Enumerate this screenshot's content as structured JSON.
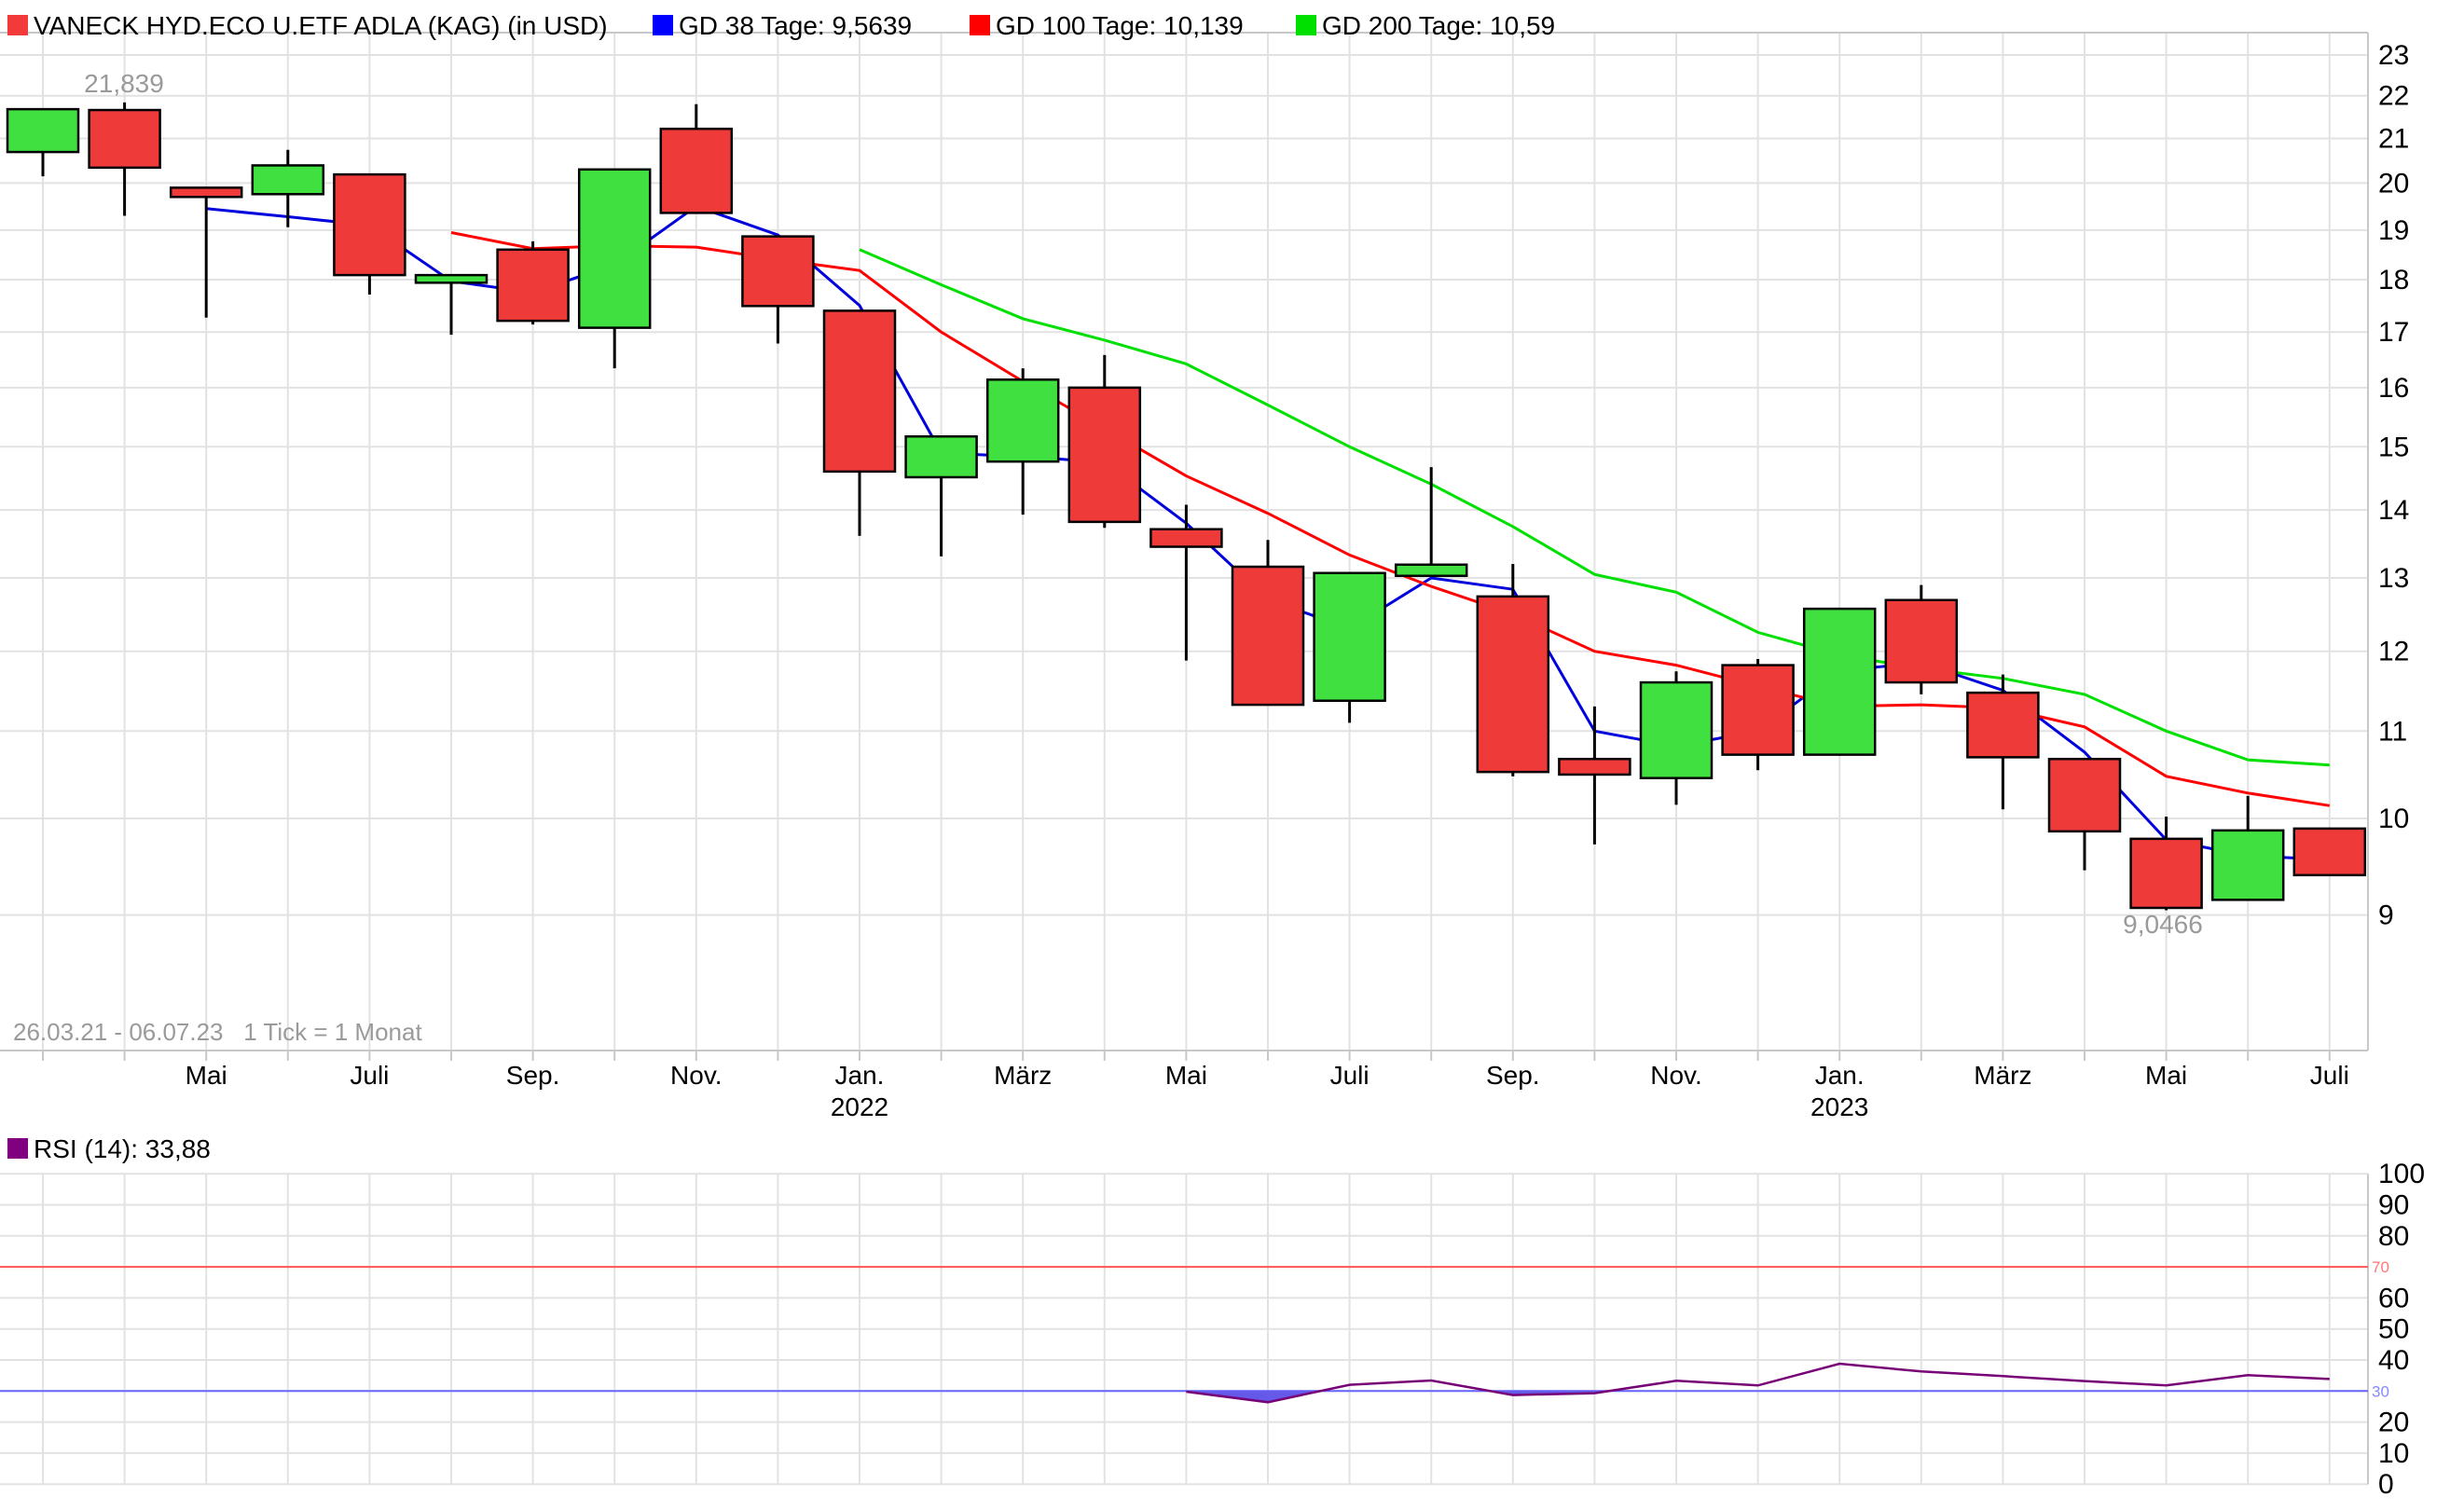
{
  "legend": {
    "items": [
      {
        "name": "instrument",
        "label": "VANECK HYD.ECO U.ETF ADLA (KAG) (in USD)",
        "marker_color": "#f23a3a"
      },
      {
        "name": "gd38",
        "label": "GD 38 Tage: 9,5639",
        "marker_color": "#0000ff"
      },
      {
        "name": "gd100",
        "label": "GD 100 Tage: 10,139",
        "marker_color": "#ff0000"
      },
      {
        "name": "gd200",
        "label": "GD 200 Tage: 10,59",
        "marker_color": "#00e000"
      }
    ]
  },
  "rsi_legend": {
    "label": "RSI (14): 33,88",
    "marker_color": "#800080"
  },
  "range_info": "26.03.21 - 06.07.23   1 Tick = 1 Monat",
  "annotations": {
    "high_label": "21,839",
    "low_label": "9,0466"
  },
  "colors": {
    "candle_up": "#3fe03f",
    "candle_down": "#ef3a3a",
    "candle_border": "#000000",
    "gd38": "#0000dd",
    "gd100": "#ff0000",
    "gd200": "#00e000",
    "rsi_line": "#770077",
    "rsi_fill": "#6459e8",
    "threshold_high": "#ff5555",
    "threshold_low": "#6666ff",
    "threshold_high_label": "#ff7777",
    "threshold_low_label": "#8888ff",
    "grid": "#e2e2e2",
    "border": "#c8c8c8",
    "axis_text": "#000000",
    "muted_text": "#9a9a9a"
  },
  "chart_data": [
    {
      "type": "candlestick",
      "title": "VANECK HYD.ECO U.ETF ADLA (KAG) (in USD)",
      "y_axis": {
        "scale": "log",
        "side": "right",
        "ticks": [
          23,
          22,
          21,
          20,
          19,
          18,
          17,
          16,
          15,
          14,
          13,
          12,
          11,
          10,
          9
        ],
        "range_top": 23.6,
        "range_bottom": 7.8
      },
      "x_axis_labels": [
        {
          "i": 2,
          "label": "Mai"
        },
        {
          "i": 4,
          "label": "Juli"
        },
        {
          "i": 6,
          "label": "Sep."
        },
        {
          "i": 8,
          "label": "Nov."
        },
        {
          "i": 10,
          "label": "Jan.",
          "year": "2022"
        },
        {
          "i": 12,
          "label": "März"
        },
        {
          "i": 14,
          "label": "Mai"
        },
        {
          "i": 16,
          "label": "Juli"
        },
        {
          "i": 18,
          "label": "Sep."
        },
        {
          "i": 20,
          "label": "Nov."
        },
        {
          "i": 22,
          "label": "Jan.",
          "year": "2023"
        },
        {
          "i": 24,
          "label": "März"
        },
        {
          "i": 26,
          "label": "Mai"
        },
        {
          "i": 28,
          "label": "Juli"
        }
      ],
      "candles": [
        {
          "m": "Mär. 2021",
          "o": 20.69,
          "h": 21.68,
          "l": 20.15,
          "c": 21.68
        },
        {
          "m": "Apr. 2021",
          "o": 21.66,
          "h": 21.839,
          "l": 19.3,
          "c": 20.34
        },
        {
          "m": "Mai 2021",
          "o": 19.9,
          "h": 19.9,
          "l": 17.27,
          "c": 19.7
        },
        {
          "m": "Jun. 2021",
          "o": 19.76,
          "h": 20.74,
          "l": 19.06,
          "c": 20.39
        },
        {
          "m": "Jul. 2021",
          "o": 20.19,
          "h": 20.19,
          "l": 17.71,
          "c": 18.09
        },
        {
          "m": "Aug. 2021",
          "o": 17.94,
          "h": 18.09,
          "l": 16.95,
          "c": 18.09
        },
        {
          "m": "Sep. 2021",
          "o": 18.6,
          "h": 18.77,
          "l": 17.14,
          "c": 17.21
        },
        {
          "m": "Okt. 2021",
          "o": 17.08,
          "h": 20.3,
          "l": 16.34,
          "c": 20.3
        },
        {
          "m": "Nov. 2021",
          "o": 21.22,
          "h": 21.8,
          "l": 19.36,
          "c": 19.36
        },
        {
          "m": "Dez. 2021",
          "o": 18.87,
          "h": 18.87,
          "l": 16.79,
          "c": 17.49
        },
        {
          "m": "Jan. 2022",
          "o": 17.4,
          "h": 17.4,
          "l": 13.61,
          "c": 14.6
        },
        {
          "m": "Feb. 2022",
          "o": 14.51,
          "h": 15.17,
          "l": 13.31,
          "c": 15.17
        },
        {
          "m": "Mär. 2022",
          "o": 14.76,
          "h": 16.34,
          "l": 13.93,
          "c": 16.14
        },
        {
          "m": "Apr. 2022",
          "o": 16.0,
          "h": 16.58,
          "l": 13.73,
          "c": 13.82
        },
        {
          "m": "Mai 2022",
          "o": 13.71,
          "h": 14.08,
          "l": 11.88,
          "c": 13.45
        },
        {
          "m": "Jun. 2022",
          "o": 13.16,
          "h": 13.55,
          "l": 11.32,
          "c": 11.32
        },
        {
          "m": "Jul. 2022",
          "o": 11.37,
          "h": 13.07,
          "l": 11.1,
          "c": 13.07
        },
        {
          "m": "Aug. 2022",
          "o": 13.03,
          "h": 14.67,
          "l": 13.03,
          "c": 13.19
        },
        {
          "m": "Sep. 2022",
          "o": 12.74,
          "h": 13.2,
          "l": 10.47,
          "c": 10.52
        },
        {
          "m": "Okt. 2022",
          "o": 10.67,
          "h": 11.3,
          "l": 9.72,
          "c": 10.49
        },
        {
          "m": "Nov. 2022",
          "o": 10.45,
          "h": 11.74,
          "l": 10.15,
          "c": 11.6
        },
        {
          "m": "Dez. 2022",
          "o": 11.82,
          "h": 11.9,
          "l": 10.54,
          "c": 10.72
        },
        {
          "m": "Jan. 2023",
          "o": 10.72,
          "h": 12.57,
          "l": 10.72,
          "c": 12.57
        },
        {
          "m": "Feb. 2023",
          "o": 12.69,
          "h": 12.9,
          "l": 11.45,
          "c": 11.6
        },
        {
          "m": "Mär. 2023",
          "o": 11.47,
          "h": 11.7,
          "l": 10.1,
          "c": 10.69
        },
        {
          "m": "Apr. 2023",
          "o": 10.67,
          "h": 10.67,
          "l": 9.45,
          "c": 9.86
        },
        {
          "m": "Mai 2023",
          "o": 9.78,
          "h": 10.02,
          "l": 9.0466,
          "c": 9.07
        },
        {
          "m": "Jun. 2023",
          "o": 9.15,
          "h": 10.25,
          "l": 9.15,
          "c": 9.87
        },
        {
          "m": "Jul. 2023",
          "o": 9.89,
          "h": 9.89,
          "l": 9.4,
          "c": 9.4
        }
      ],
      "series": [
        {
          "name": "GD 38 Tage",
          "current": "9,5639",
          "color_key": "gd38",
          "start_i": 2,
          "values": [
            19.45,
            19.28,
            19.1,
            17.97,
            17.75,
            18.3,
            19.5,
            18.9,
            17.5,
            14.9,
            14.84,
            14.75,
            13.8,
            12.7,
            12.3,
            13.0,
            12.84,
            11.0,
            10.82,
            11.0,
            11.75,
            11.85,
            11.5,
            10.75,
            9.77,
            9.6,
            9.56
          ]
        },
        {
          "name": "GD 100 Tage",
          "current": "10,139",
          "color_key": "gd100",
          "start_i": 5,
          "values": [
            18.95,
            18.62,
            18.68,
            18.65,
            18.4,
            18.18,
            17.0,
            16.11,
            15.3,
            14.53,
            13.95,
            13.33,
            12.88,
            12.5,
            12.0,
            11.82,
            11.55,
            11.3,
            11.32,
            11.28,
            11.05,
            10.47,
            10.28,
            10.14
          ]
        },
        {
          "name": "GD 200 Tage",
          "current": "10,59",
          "color_key": "gd200",
          "start_i": 10,
          "values": [
            18.6,
            17.9,
            17.25,
            16.85,
            16.42,
            15.7,
            15.0,
            14.4,
            13.75,
            13.05,
            12.8,
            12.25,
            11.95,
            11.78,
            11.65,
            11.45,
            11.0,
            10.66,
            10.6
          ]
        }
      ],
      "point_annotations": [
        {
          "i": 1,
          "text": "21,839",
          "position": "above-high",
          "value": 21.839
        },
        {
          "i": 26,
          "text": "9,0466",
          "position": "below-low",
          "value": 9.0466
        }
      ]
    },
    {
      "type": "line",
      "title": "RSI (14)",
      "current_value": "33,88",
      "y_axis": {
        "scale": "linear",
        "side": "right",
        "ticks": [
          100,
          90,
          80,
          60,
          50,
          40,
          20,
          10,
          0
        ],
        "ylim": [
          0,
          100
        ]
      },
      "thresholds": {
        "overbought": 70,
        "oversold": 30
      },
      "fill_below_oversold": true,
      "start_i": 14,
      "values": [
        29.8,
        26.4,
        32.0,
        33.4,
        28.7,
        29.3,
        33.3,
        31.8,
        38.8,
        36.3,
        34.8,
        33.2,
        31.8,
        35.1,
        33.88
      ]
    }
  ]
}
